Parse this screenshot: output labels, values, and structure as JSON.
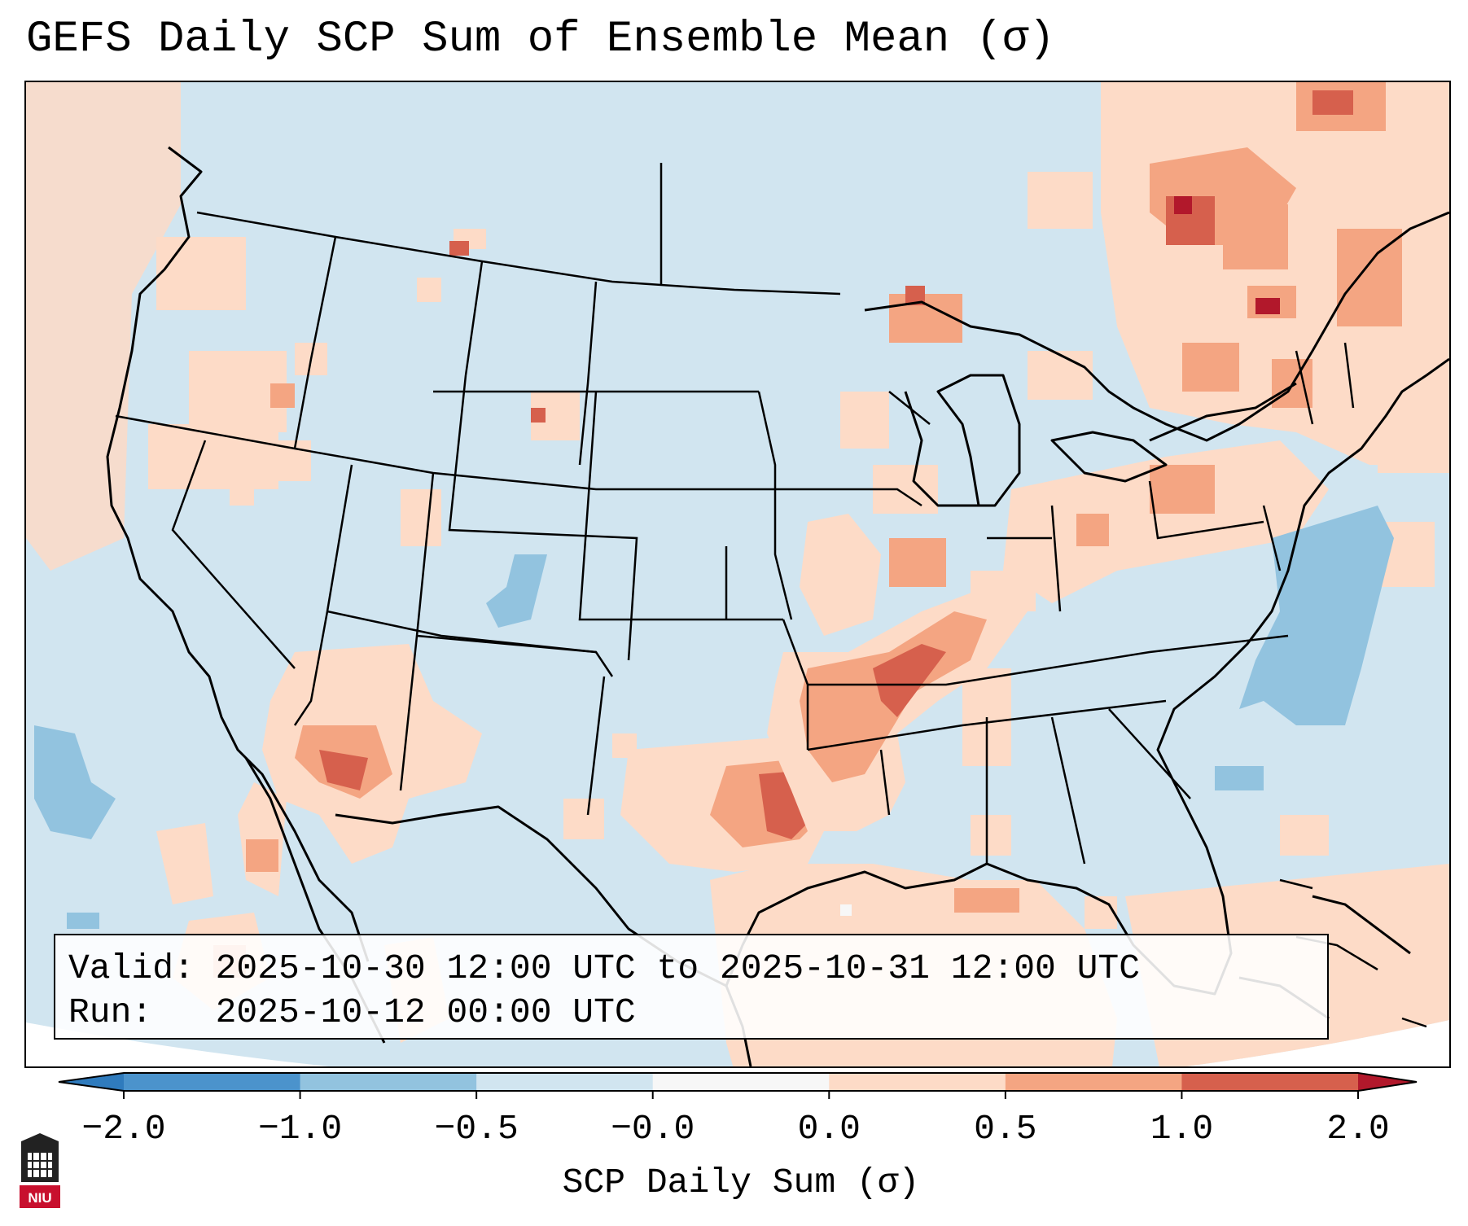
{
  "title": "GEFS Daily SCP Sum of Ensemble Mean (σ)",
  "info": {
    "valid_line": "Valid: 2025-10-30 12:00 UTC to 2025-10-31 12:00 UTC",
    "run_line": "Run:   2025-10-12 00:00 UTC"
  },
  "colorbar": {
    "label": "SCP Daily Sum (σ)",
    "ticks": [
      "−2.0",
      "−1.0",
      "−0.5",
      "−0.0",
      "0.0",
      "0.5",
      "1.0",
      "2.0"
    ],
    "bins": [
      {
        "range": "< -2.0",
        "color": "#2f7bbd"
      },
      {
        "range": "-2.0 to -1.0",
        "color": "#4b93cc"
      },
      {
        "range": "-1.0 to -0.5",
        "color": "#92c3df"
      },
      {
        "range": "-0.5 to -0.0",
        "color": "#d1e5f0"
      },
      {
        "range": "-0.0 to 0.0",
        "color": "#f7f7f7"
      },
      {
        "range": "0.0 to 0.5",
        "color": "#fddbc7"
      },
      {
        "range": "0.5 to 1.0",
        "color": "#f4a582"
      },
      {
        "range": "1.0 to 2.0",
        "color": "#d6604d"
      },
      {
        "range": "> 2.0",
        "color": "#b2182b"
      }
    ]
  },
  "logo": {
    "text": "NIU"
  }
}
